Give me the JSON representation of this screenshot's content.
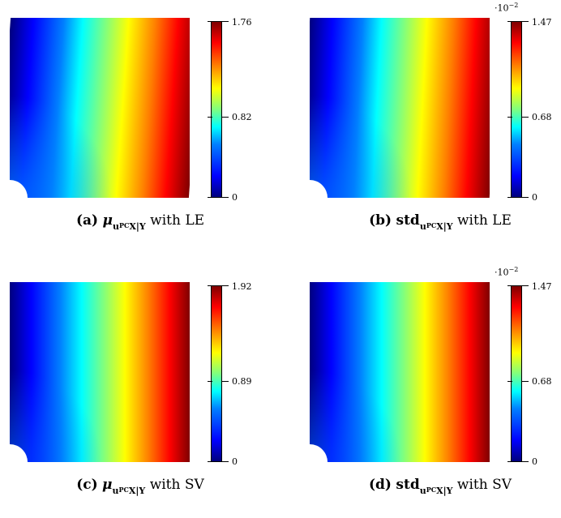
{
  "panels": [
    {
      "colorbar": {
        "max": "1.76",
        "mid": "0.82",
        "min": "0",
        "scale": ""
      },
      "caption": {
        "tag": "(a)",
        "symbol": "μ",
        "sub": "u",
        "subsup": "PC",
        "subtail": "X|Y",
        "method": "with LE"
      }
    },
    {
      "colorbar": {
        "max": "1.47",
        "mid": "0.68",
        "min": "0",
        "scale": "·10",
        "scale_exp": "−2"
      },
      "caption": {
        "tag": "(b)",
        "symbol": "std",
        "sub": "u",
        "subsup": "PC",
        "subtail": "X|Y",
        "method": "with LE"
      }
    },
    {
      "colorbar": {
        "max": "1.92",
        "mid": "0.89",
        "min": "0",
        "scale": ""
      },
      "caption": {
        "tag": "(c)",
        "symbol": "μ",
        "sub": "u",
        "subsup": "PC",
        "subtail": "X|Y",
        "method": "with SV"
      }
    },
    {
      "colorbar": {
        "max": "1.47",
        "mid": "0.68",
        "min": "0",
        "scale": "·10",
        "scale_exp": "−2"
      },
      "caption": {
        "tag": "(d)",
        "symbol": "std",
        "sub": "u",
        "subsup": "PC",
        "subtail": "X|Y",
        "method": "with SV"
      }
    }
  ]
}
